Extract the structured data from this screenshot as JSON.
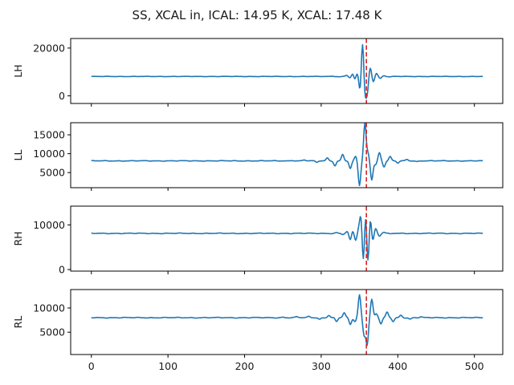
{
  "chart_data": {
    "type": "line",
    "title": "SS, XCAL in, ICAL: 14.95 K, XCAL: 17.48 K",
    "xlim": [
      -27,
      537
    ],
    "x_ticks": [
      0,
      100,
      200,
      300,
      400,
      500
    ],
    "marker_x": 359,
    "colors": {
      "line": "#1f77b4",
      "marker": "#d62728",
      "axes": "#000000"
    },
    "panels": [
      {
        "ylabel": "LH",
        "ylim": [
          -3200,
          24000
        ],
        "y_ticks": [
          0,
          20000
        ],
        "baseline": 8100,
        "events": [
          {
            "x": 315,
            "amp": 150
          },
          {
            "x": 324,
            "amp": -120
          },
          {
            "x": 333,
            "amp": 500
          },
          {
            "x": 338,
            "amp": -700
          },
          {
            "x": 341,
            "amp": 1300
          },
          {
            "x": 344,
            "amp": -1500
          },
          {
            "x": 347,
            "amp": 1500
          },
          {
            "x": 351,
            "amp": -7000
          },
          {
            "x": 354,
            "amp": 15900
          },
          {
            "x": 357,
            "amp": -8000
          },
          {
            "x": 360,
            "amp": -6800
          },
          {
            "x": 364,
            "amp": 3800
          },
          {
            "x": 368,
            "amp": -2300
          },
          {
            "x": 372,
            "amp": 1400
          },
          {
            "x": 377,
            "amp": -800
          },
          {
            "x": 382,
            "amp": 300
          },
          {
            "x": 390,
            "amp": -150
          }
        ]
      },
      {
        "ylabel": "LL",
        "ylim": [
          1000,
          18200
        ],
        "y_ticks": [
          5000,
          10000,
          15000
        ],
        "baseline": 8100,
        "events": [
          {
            "x": 262,
            "amp": 150
          },
          {
            "x": 278,
            "amp": 250
          },
          {
            "x": 294,
            "amp": -400
          },
          {
            "x": 308,
            "amp": 800
          },
          {
            "x": 318,
            "amp": -1300
          },
          {
            "x": 328,
            "amp": 1700
          },
          {
            "x": 338,
            "amp": -2100
          },
          {
            "x": 345,
            "amp": 1200
          },
          {
            "x": 350,
            "amp": -6500
          },
          {
            "x": 357,
            "amp": 9900
          },
          {
            "x": 361,
            "amp": 2000
          },
          {
            "x": 366,
            "amp": -5000
          },
          {
            "x": 371,
            "amp": -1000
          },
          {
            "x": 376,
            "amp": 2200
          },
          {
            "x": 382,
            "amp": -1600
          },
          {
            "x": 390,
            "amp": 1100
          },
          {
            "x": 400,
            "amp": -600
          },
          {
            "x": 412,
            "amp": 400
          },
          {
            "x": 425,
            "amp": -200
          }
        ]
      },
      {
        "ylabel": "RH",
        "ylim": [
          -350,
          14200
        ],
        "y_ticks": [
          0,
          10000
        ],
        "baseline": 8100,
        "events": [
          {
            "x": 320,
            "amp": 150
          },
          {
            "x": 328,
            "amp": -250
          },
          {
            "x": 334,
            "amp": 400
          },
          {
            "x": 338,
            "amp": -1600
          },
          {
            "x": 341,
            "amp": 700
          },
          {
            "x": 345,
            "amp": -1600
          },
          {
            "x": 349,
            "amp": 1000
          },
          {
            "x": 352,
            "amp": 4400
          },
          {
            "x": 355,
            "amp": -7400
          },
          {
            "x": 358,
            "amp": 5700
          },
          {
            "x": 361,
            "amp": -7600
          },
          {
            "x": 364,
            "amp": 4300
          },
          {
            "x": 367,
            "amp": -2000
          },
          {
            "x": 371,
            "amp": 1100
          },
          {
            "x": 376,
            "amp": -600
          },
          {
            "x": 382,
            "amp": 250
          },
          {
            "x": 390,
            "amp": -150
          }
        ]
      },
      {
        "ylabel": "RL",
        "ylim": [
          400,
          13800
        ],
        "y_ticks": [
          5000,
          10000
        ],
        "baseline": 8000,
        "events": [
          {
            "x": 250,
            "amp": 120
          },
          {
            "x": 268,
            "amp": 200
          },
          {
            "x": 284,
            "amp": 250
          },
          {
            "x": 298,
            "amp": -350
          },
          {
            "x": 310,
            "amp": 500
          },
          {
            "x": 320,
            "amp": -800
          },
          {
            "x": 330,
            "amp": 1000
          },
          {
            "x": 338,
            "amp": -1400
          },
          {
            "x": 344,
            "amp": -800
          },
          {
            "x": 350,
            "amp": 4700
          },
          {
            "x": 356,
            "amp": -3500
          },
          {
            "x": 360,
            "amp": -5500
          },
          {
            "x": 366,
            "amp": 3800
          },
          {
            "x": 372,
            "amp": 800
          },
          {
            "x": 378,
            "amp": -1300
          },
          {
            "x": 386,
            "amp": 1100
          },
          {
            "x": 394,
            "amp": -800
          },
          {
            "x": 404,
            "amp": 500
          },
          {
            "x": 416,
            "amp": -300
          },
          {
            "x": 430,
            "amp": 180
          }
        ]
      }
    ]
  }
}
